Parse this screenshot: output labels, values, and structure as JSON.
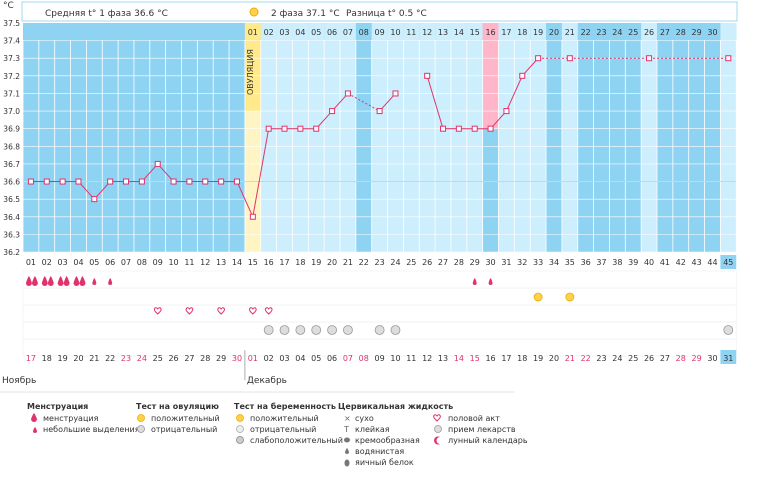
{
  "colors": {
    "high": "#cdeefc",
    "low": "#8fd3f3",
    "ovulation": "#ffe98a",
    "ovulation_cell": "#fff4c4",
    "pink": "#ffb6c8",
    "line": "#e0336b",
    "coverline": "#dfe84a",
    "grid": "#ffffff",
    "text_red": "#e0336b",
    "text_dark": "#333333"
  },
  "header": {
    "unit": "°C",
    "phase1_label": "Средняя t° 1 фаза 36.6 °С",
    "phase2_label": "2 фаза 37.1 °С",
    "difference_label": "Разница t° 0.5 °С",
    "ovulation_vertical": "ОВУЛЯЦИЯ"
  },
  "chart_data": {
    "type": "line",
    "title": "",
    "xlabel": "",
    "ylabel": "°C",
    "ylim": [
      36.2,
      37.5
    ],
    "y_ticks": [
      36.2,
      36.3,
      36.4,
      36.5,
      36.6,
      36.7,
      36.8,
      36.9,
      37.0,
      37.1,
      37.2,
      37.3,
      37.4,
      37.5
    ],
    "coverline": 36.6,
    "ovulation_day": 15,
    "cycle_days": [
      1,
      2,
      3,
      4,
      5,
      6,
      7,
      8,
      9,
      10,
      11,
      12,
      13,
      14,
      15,
      16,
      17,
      18,
      19,
      20,
      21,
      22,
      23,
      24,
      25,
      26,
      27,
      28,
      29,
      30,
      31,
      32,
      33,
      34,
      35,
      36,
      37,
      38,
      39,
      40,
      41,
      42,
      43,
      44,
      45
    ],
    "cycle_day_labels": [
      "01",
      "02",
      "03",
      "04",
      "05",
      "06",
      "07",
      "08",
      "09",
      "10",
      "11",
      "12",
      "13",
      "14",
      "15",
      "16",
      "17",
      "18",
      "19",
      "20",
      "21",
      "22",
      "23",
      "24",
      "25",
      "26",
      "27",
      "28",
      "29",
      "30",
      "31",
      "32",
      "33",
      "34",
      "35",
      "36",
      "37",
      "38",
      "39",
      "40",
      "41",
      "42",
      "43",
      "44",
      "45"
    ],
    "top_day_labels": [
      "01",
      "02",
      "03",
      "04",
      "05",
      "06",
      "07",
      "08",
      "09",
      "10",
      "11",
      "12",
      "13",
      "14",
      "15",
      "16",
      "17",
      "18",
      "19",
      "20",
      "21",
      "22",
      "23",
      "24",
      "25",
      "26",
      "27",
      "28",
      "29",
      "30"
    ],
    "series": [
      {
        "values": [
          36.6,
          36.6,
          36.6,
          36.6,
          36.5,
          36.6,
          36.6,
          36.6,
          36.7,
          36.6,
          36.6,
          36.6,
          36.6,
          36.6,
          36.4,
          36.9,
          36.9,
          36.9,
          36.9,
          37.0,
          37.1,
          null,
          37.0,
          37.1,
          null,
          37.2,
          36.9,
          36.9,
          36.9,
          36.9,
          37.0,
          37.2,
          37.3,
          null,
          37.3,
          null,
          null,
          null,
          null,
          37.3,
          null,
          null,
          null,
          null,
          37.3
        ]
      }
    ],
    "dotted_segments": [
      [
        21,
        23
      ],
      [
        33,
        35
      ],
      [
        35,
        40
      ],
      [
        40,
        45
      ]
    ],
    "date_labels": [
      "17",
      "18",
      "19",
      "20",
      "21",
      "22",
      "23",
      "24",
      "25",
      "26",
      "27",
      "28",
      "29",
      "30",
      "01",
      "02",
      "03",
      "04",
      "05",
      "06",
      "07",
      "08",
      "09",
      "10",
      "11",
      "12",
      "13",
      "14",
      "15",
      "16",
      "17",
      "18",
      "19",
      "20",
      "21",
      "22",
      "23",
      "24",
      "25",
      "26",
      "27",
      "28",
      "29",
      "30",
      "31"
    ],
    "red_date_indices": [
      0,
      6,
      7,
      13,
      14,
      20,
      21,
      27,
      28,
      34,
      35,
      41,
      42
    ],
    "month_labels": [
      "Ноябрь",
      "Декабрь"
    ],
    "high_day_indices": [
      14,
      15,
      16,
      17,
      18,
      19,
      20,
      22,
      23,
      24,
      25,
      26,
      27,
      28,
      30,
      31,
      32,
      34,
      39,
      44
    ],
    "pink_top_index": 29,
    "highlight_last_index": 44,
    "menstruation_rows": {
      "heavy": [
        1,
        2,
        3,
        4
      ],
      "light": [
        5,
        6,
        29,
        30
      ]
    },
    "ovulation_test_positive_days": [
      33,
      35
    ],
    "pregnancy_test_negative_hearts": [
      9,
      11,
      13,
      15,
      16
    ],
    "medication_days": [
      16,
      17,
      18,
      19,
      20,
      21,
      23,
      24,
      45
    ],
    "moon_day": 28
  },
  "legend": {
    "menstruation": {
      "title": "Менструация",
      "items": [
        "менструация",
        "небольшие выделения"
      ]
    },
    "ovulation_test": {
      "title": "Тест на овуляцию",
      "items": [
        "положительный",
        "отрицательный"
      ]
    },
    "pregnancy_test": {
      "title": "Тест на беременность",
      "items": [
        "положительный",
        "отрицательный",
        "слабоположительный"
      ]
    },
    "cervical_fluid": {
      "title": "Цервикальная жидкость",
      "items": [
        "сухо",
        "клейкая",
        "кремообразная",
        "водянистая",
        "яичный белок"
      ]
    },
    "other": {
      "items": [
        "половой акт",
        "прием лекарств",
        "лунный календарь"
      ]
    }
  }
}
